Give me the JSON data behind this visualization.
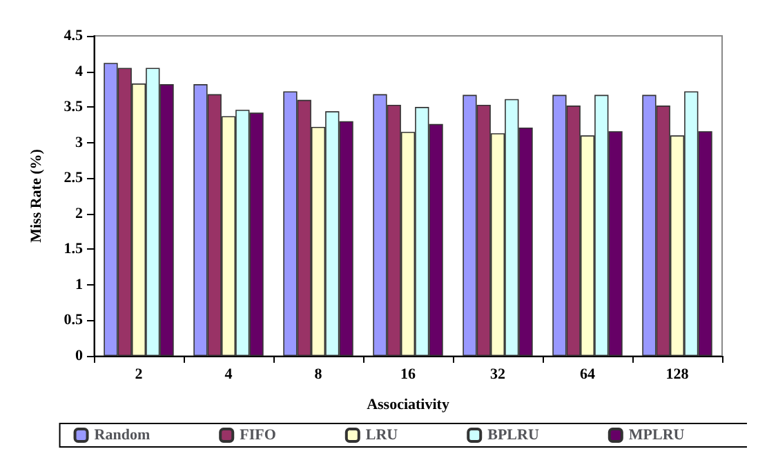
{
  "chart_data": {
    "type": "bar",
    "xlabel": "Associativity",
    "ylabel": "Miss Rate (%)",
    "categories": [
      "2",
      "4",
      "8",
      "16",
      "32",
      "64",
      "128"
    ],
    "series": [
      {
        "name": "Random",
        "color": "#9999ff",
        "values": [
          4.12,
          3.82,
          3.72,
          3.68,
          3.67,
          3.67,
          3.67
        ]
      },
      {
        "name": "FIFO",
        "color": "#993366",
        "values": [
          4.05,
          3.68,
          3.6,
          3.53,
          3.53,
          3.52,
          3.52
        ]
      },
      {
        "name": "LRU",
        "color": "#ffffcc",
        "values": [
          3.83,
          3.37,
          3.22,
          3.15,
          3.13,
          3.1,
          3.1
        ]
      },
      {
        "name": "BPLRU",
        "color": "#ccffff",
        "values": [
          4.05,
          3.46,
          3.44,
          3.5,
          3.61,
          3.67,
          3.72
        ]
      },
      {
        "name": "MPLRU",
        "color": "#660066",
        "values": [
          3.82,
          3.42,
          3.3,
          3.26,
          3.21,
          3.16,
          3.16
        ]
      }
    ],
    "ylim": [
      0,
      4.5
    ],
    "yticks": [
      0,
      0.5,
      1,
      1.5,
      2,
      2.5,
      3,
      3.5,
      4,
      4.5
    ],
    "grid": false,
    "legend": "bottom"
  }
}
